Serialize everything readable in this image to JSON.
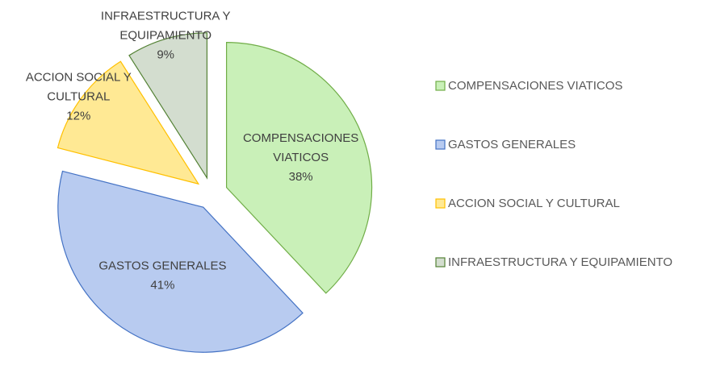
{
  "chart_data": {
    "type": "pie",
    "categories": [
      "COMPENSACIONES VIATICOS",
      "GASTOS GENERALES",
      "ACCION SOCIAL Y CULTURAL",
      "INFRAESTRUCTURA Y EQUIPAMIENTO"
    ],
    "values": [
      38,
      41,
      12,
      9
    ],
    "value_labels": [
      "38%",
      "41%",
      "12%",
      "9%"
    ],
    "colors": [
      "#c9f0b8",
      "#b8cbf0",
      "#ffe994",
      "#d3ddcf"
    ],
    "edge_colors": [
      "#70ad47",
      "#4472c4",
      "#ffc000",
      "#548235"
    ],
    "legend": "right"
  }
}
